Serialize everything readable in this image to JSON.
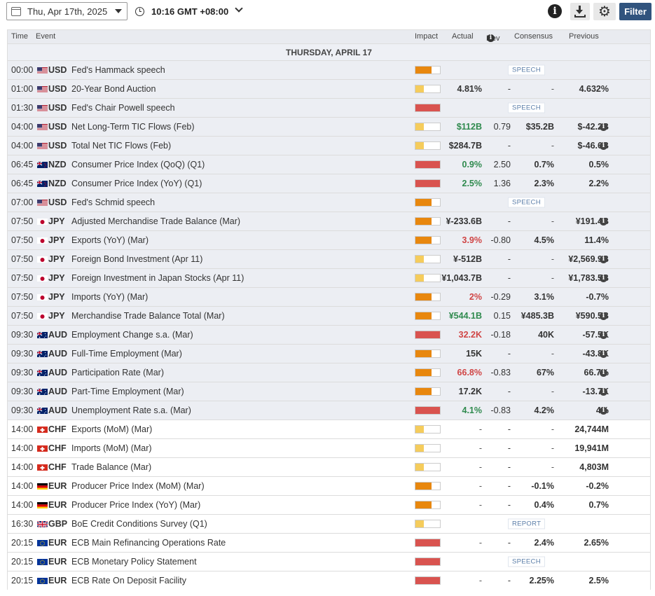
{
  "toolbar": {
    "date_label": "Thu, Apr 17th, 2025",
    "timezone_label": "10:16 GMT +08:00",
    "filter_label": "Filter",
    "info_icon": "i",
    "gear_icon": "⚙"
  },
  "columns": {
    "time": "Time",
    "event": "Event",
    "impact": "Impact",
    "actual": "Actual",
    "dev": "Dev",
    "consensus": "Consensus",
    "previous": "Previous"
  },
  "day_label": "THURSDAY, APRIL 17",
  "colors": {
    "impact_high": "#d9534f",
    "impact_medium": "#e8870e",
    "impact_low": "#f5cc5c",
    "positive": "#2f8a4e",
    "negative": "#d04545",
    "filter_bg": "#31547e"
  },
  "events": [
    {
      "time": "00:00",
      "flag": "us",
      "cur": "USD",
      "name": "Fed's Hammack speech",
      "impact": "medium",
      "badge": "SPEECH",
      "past": true
    },
    {
      "time": "01:00",
      "flag": "us",
      "cur": "USD",
      "name": "20-Year Bond Auction",
      "impact": "low",
      "actual": "4.81%",
      "dev": "-",
      "cons": "-",
      "prev": "4.632%",
      "past": true
    },
    {
      "time": "01:30",
      "flag": "us",
      "cur": "USD",
      "name": "Fed's Chair Powell speech",
      "impact": "high",
      "badge": "SPEECH",
      "past": true
    },
    {
      "time": "04:00",
      "flag": "us",
      "cur": "USD",
      "name": "Net Long-Term TIC Flows (Feb)",
      "impact": "low",
      "actual": "$112B",
      "actual_color": "green",
      "dev": "0.79",
      "cons": "$35.2B",
      "prev": "$-42.2B",
      "prev_info": true,
      "past": true
    },
    {
      "time": "04:00",
      "flag": "us",
      "cur": "USD",
      "name": "Total Net TIC Flows (Feb)",
      "impact": "low",
      "actual": "$284.7B",
      "dev": "-",
      "cons": "-",
      "prev": "$-46.6B",
      "prev_info": true,
      "past": true
    },
    {
      "time": "06:45",
      "flag": "nz",
      "cur": "NZD",
      "name": "Consumer Price Index (QoQ) (Q1)",
      "impact": "high",
      "actual": "0.9%",
      "actual_color": "green",
      "dev": "2.50",
      "cons": "0.7%",
      "prev": "0.5%",
      "past": true
    },
    {
      "time": "06:45",
      "flag": "nz",
      "cur": "NZD",
      "name": "Consumer Price Index (YoY) (Q1)",
      "impact": "high",
      "actual": "2.5%",
      "actual_color": "green",
      "dev": "1.36",
      "cons": "2.3%",
      "prev": "2.2%",
      "past": true
    },
    {
      "time": "07:00",
      "flag": "us",
      "cur": "USD",
      "name": "Fed's Schmid speech",
      "impact": "medium",
      "badge": "SPEECH",
      "past": true
    },
    {
      "time": "07:50",
      "flag": "jp",
      "cur": "JPY",
      "name": "Adjusted Merchandise Trade Balance (Mar)",
      "impact": "medium",
      "actual": "¥-233.6B",
      "dev": "-",
      "cons": "-",
      "prev": "¥191.4B",
      "prev_info": true,
      "past": true
    },
    {
      "time": "07:50",
      "flag": "jp",
      "cur": "JPY",
      "name": "Exports (YoY) (Mar)",
      "impact": "medium",
      "actual": "3.9%",
      "actual_color": "red",
      "dev": "-0.80",
      "cons": "4.5%",
      "prev": "11.4%",
      "past": true
    },
    {
      "time": "07:50",
      "flag": "jp",
      "cur": "JPY",
      "name": "Foreign Bond Investment (Apr 11)",
      "impact": "low",
      "actual": "¥-512B",
      "dev": "-",
      "cons": "-",
      "prev": "¥2,569.9B",
      "prev_info": true,
      "past": true
    },
    {
      "time": "07:50",
      "flag": "jp",
      "cur": "JPY",
      "name": "Foreign Investment in Japan Stocks (Apr 11)",
      "impact": "low",
      "actual": "¥1,043.7B",
      "dev": "-",
      "cons": "-",
      "prev": "¥1,783.5B",
      "prev_info": true,
      "past": true
    },
    {
      "time": "07:50",
      "flag": "jp",
      "cur": "JPY",
      "name": "Imports (YoY) (Mar)",
      "impact": "medium",
      "actual": "2%",
      "actual_color": "red",
      "dev": "-0.29",
      "cons": "3.1%",
      "prev": "-0.7%",
      "past": true
    },
    {
      "time": "07:50",
      "flag": "jp",
      "cur": "JPY",
      "name": "Merchandise Trade Balance Total (Mar)",
      "impact": "medium",
      "actual": "¥544.1B",
      "actual_color": "green",
      "dev": "0.15",
      "cons": "¥485.3B",
      "prev": "¥590.5B",
      "prev_info": true,
      "past": true
    },
    {
      "time": "09:30",
      "flag": "au",
      "cur": "AUD",
      "name": "Employment Change s.a. (Mar)",
      "impact": "high",
      "actual": "32.2K",
      "actual_color": "red",
      "dev": "-0.18",
      "cons": "40K",
      "prev": "-57.5K",
      "prev_info": true,
      "past": true
    },
    {
      "time": "09:30",
      "flag": "au",
      "cur": "AUD",
      "name": "Full-Time Employment (Mar)",
      "impact": "medium",
      "actual": "15K",
      "dev": "-",
      "cons": "-",
      "prev": "-43.8K",
      "prev_info": true,
      "past": true
    },
    {
      "time": "09:30",
      "flag": "au",
      "cur": "AUD",
      "name": "Participation Rate (Mar)",
      "impact": "medium",
      "actual": "66.8%",
      "actual_color": "red",
      "dev": "-0.83",
      "cons": "67%",
      "prev": "66.7%",
      "prev_info": true,
      "past": true
    },
    {
      "time": "09:30",
      "flag": "au",
      "cur": "AUD",
      "name": "Part-Time Employment (Mar)",
      "impact": "medium",
      "actual": "17.2K",
      "dev": "-",
      "cons": "-",
      "prev": "-13.7K",
      "prev_info": true,
      "past": true
    },
    {
      "time": "09:30",
      "flag": "au",
      "cur": "AUD",
      "name": "Unemployment Rate s.a. (Mar)",
      "impact": "high",
      "actual": "4.1%",
      "actual_color": "green",
      "dev": "-0.83",
      "cons": "4.2%",
      "prev": "4%",
      "prev_info": true,
      "past": true
    },
    {
      "time": "14:00",
      "flag": "ch",
      "cur": "CHF",
      "name": "Exports (MoM) (Mar)",
      "impact": "low",
      "actual": "-",
      "dev": "-",
      "cons": "-",
      "prev": "24,744M",
      "past": false
    },
    {
      "time": "14:00",
      "flag": "ch",
      "cur": "CHF",
      "name": "Imports (MoM) (Mar)",
      "impact": "low",
      "actual": "-",
      "dev": "-",
      "cons": "-",
      "prev": "19,941M",
      "past": false
    },
    {
      "time": "14:00",
      "flag": "ch",
      "cur": "CHF",
      "name": "Trade Balance (Mar)",
      "impact": "low",
      "actual": "-",
      "dev": "-",
      "cons": "-",
      "prev": "4,803M",
      "past": false
    },
    {
      "time": "14:00",
      "flag": "de",
      "cur": "EUR",
      "name": "Producer Price Index (MoM) (Mar)",
      "impact": "medium",
      "actual": "-",
      "dev": "-",
      "cons": "-0.1%",
      "prev": "-0.2%",
      "past": false
    },
    {
      "time": "14:00",
      "flag": "de",
      "cur": "EUR",
      "name": "Producer Price Index (YoY) (Mar)",
      "impact": "medium",
      "actual": "-",
      "dev": "-",
      "cons": "0.4%",
      "prev": "0.7%",
      "past": false
    },
    {
      "time": "16:30",
      "flag": "gb",
      "cur": "GBP",
      "name": "BoE Credit Conditions Survey (Q1)",
      "impact": "low",
      "badge": "REPORT",
      "past": false
    },
    {
      "time": "20:15",
      "flag": "eu",
      "cur": "EUR",
      "name": "ECB Main Refinancing Operations Rate",
      "impact": "high",
      "actual": "-",
      "dev": "-",
      "cons": "2.4%",
      "prev": "2.65%",
      "past": false
    },
    {
      "time": "20:15",
      "flag": "eu",
      "cur": "EUR",
      "name": "ECB Monetary Policy Statement",
      "impact": "high",
      "badge": "SPEECH",
      "past": false
    },
    {
      "time": "20:15",
      "flag": "eu",
      "cur": "EUR",
      "name": "ECB Rate On Deposit Facility",
      "impact": "high",
      "actual": "-",
      "dev": "-",
      "cons": "2.25%",
      "prev": "2.5%",
      "past": false
    }
  ]
}
